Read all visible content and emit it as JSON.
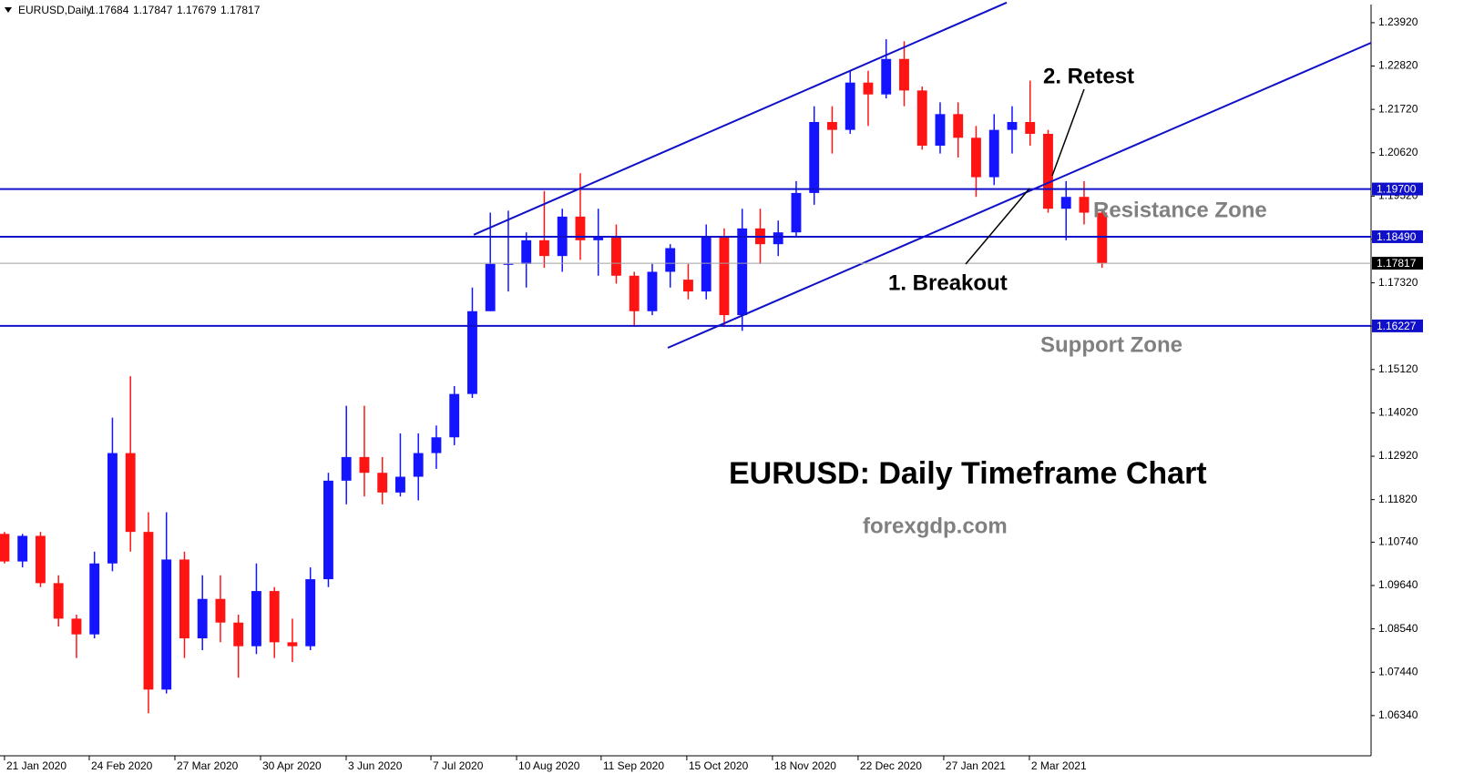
{
  "chart_data": {
    "type": "candlestick",
    "title": "EURUSD,Daily",
    "header_values": [
      1.17684,
      1.17847,
      1.17679,
      1.17817
    ],
    "up_color": "#1414ff",
    "down_color": "#ff1414",
    "line_color": "#1010c8",
    "open": [
      1.1095,
      1.1025,
      1.109,
      1.097,
      1.088,
      1.084,
      1.102,
      1.13,
      1.11,
      1.07,
      1.103,
      1.083,
      1.093,
      1.087,
      1.081,
      1.095,
      1.082,
      1.081,
      1.098,
      1.123,
      1.129,
      1.125,
      1.12,
      1.124,
      1.13,
      1.134,
      1.145,
      1.166,
      1.178,
      1.178,
      1.184,
      1.18,
      1.19,
      1.184,
      1.185,
      1.175,
      1.166,
      1.176,
      1.174,
      1.171,
      1.185,
      1.165,
      1.187,
      1.183,
      1.186,
      1.196,
      1.214,
      1.212,
      1.224,
      1.221,
      1.23,
      1.222,
      1.208,
      1.216,
      1.21,
      1.2,
      1.212,
      1.214,
      1.211,
      1.192,
      1.195,
      1.191
    ],
    "high": [
      1.11,
      1.1095,
      1.11,
      1.099,
      1.089,
      1.105,
      1.139,
      1.1495,
      1.115,
      1.115,
      1.105,
      1.099,
      1.099,
      1.089,
      1.102,
      1.096,
      1.088,
      1.101,
      1.125,
      1.142,
      1.142,
      1.129,
      1.135,
      1.135,
      1.137,
      1.147,
      1.172,
      1.191,
      1.1915,
      1.186,
      1.1965,
      1.192,
      1.201,
      1.192,
      1.188,
      1.176,
      1.178,
      1.183,
      1.178,
      1.188,
      1.187,
      1.192,
      1.192,
      1.189,
      1.199,
      1.218,
      1.218,
      1.227,
      1.227,
      1.235,
      1.2345,
      1.223,
      1.219,
      1.219,
      1.213,
      1.216,
      1.218,
      1.2245,
      1.212,
      1.199,
      1.199,
      1.192
    ],
    "low": [
      1.102,
      1.101,
      1.096,
      1.086,
      1.078,
      1.083,
      1.1,
      1.105,
      1.064,
      1.069,
      1.078,
      1.08,
      1.082,
      1.073,
      1.079,
      1.078,
      1.077,
      1.08,
      1.096,
      1.117,
      1.119,
      1.117,
      1.119,
      1.118,
      1.126,
      1.132,
      1.144,
      1.166,
      1.171,
      1.172,
      1.177,
      1.176,
      1.179,
      1.175,
      1.173,
      1.162,
      1.165,
      1.172,
      1.169,
      1.169,
      1.162,
      1.161,
      1.178,
      1.18,
      1.185,
      1.193,
      1.206,
      1.211,
      1.213,
      1.22,
      1.218,
      1.207,
      1.206,
      1.205,
      1.195,
      1.198,
      1.206,
      1.208,
      1.191,
      1.184,
      1.188,
      1.177
    ],
    "close": [
      1.1025,
      1.109,
      1.097,
      1.088,
      1.084,
      1.102,
      1.13,
      1.11,
      1.07,
      1.103,
      1.083,
      1.093,
      1.087,
      1.081,
      1.095,
      1.082,
      1.081,
      1.098,
      1.123,
      1.129,
      1.125,
      1.12,
      1.124,
      1.13,
      1.134,
      1.145,
      1.166,
      1.178,
      1.178,
      1.184,
      1.18,
      1.19,
      1.184,
      1.185,
      1.175,
      1.166,
      1.176,
      1.182,
      1.171,
      1.185,
      1.165,
      1.187,
      1.183,
      1.186,
      1.196,
      1.214,
      1.212,
      1.224,
      1.221,
      1.23,
      1.222,
      1.208,
      1.216,
      1.21,
      1.2,
      1.212,
      1.214,
      1.211,
      1.192,
      1.195,
      1.191,
      1.1782
    ],
    "xlim": [
      -0.25,
      75.95
    ],
    "ylim": [
      1.0532,
      1.2438
    ],
    "xticks": [
      {
        "value": 0,
        "label": "21 Jan 2020"
      },
      {
        "value": 4.71,
        "label": "24 Feb 2020"
      },
      {
        "value": 9.47,
        "label": "27 Mar 2020"
      },
      {
        "value": 14.23,
        "label": "30 Apr 2020"
      },
      {
        "value": 18.99,
        "label": "3 Jun 2020"
      },
      {
        "value": 23.7,
        "label": "7 Jul 2020"
      },
      {
        "value": 28.46,
        "label": "10 Aug 2020"
      },
      {
        "value": 33.16,
        "label": "11 Sep 2020"
      },
      {
        "value": 37.92,
        "label": "15 Oct 2020"
      },
      {
        "value": 42.68,
        "label": "18 Nov 2020"
      },
      {
        "value": 47.44,
        "label": "22 Dec 2020"
      },
      {
        "value": 52.2,
        "label": "27 Jan 2021"
      },
      {
        "value": 56.96,
        "label": "2 Mar 2021"
      }
    ],
    "yticks": [
      {
        "value": 1.0634,
        "label": "1.06340"
      },
      {
        "value": 1.0744,
        "label": "1.07440"
      },
      {
        "value": 1.0854,
        "label": "1.08540"
      },
      {
        "value": 1.0964,
        "label": "1.09640"
      },
      {
        "value": 1.1074,
        "label": "1.10740"
      },
      {
        "value": 1.1182,
        "label": "1.11820"
      },
      {
        "value": 1.1292,
        "label": "1.12920"
      },
      {
        "value": 1.1402,
        "label": "1.14020"
      },
      {
        "value": 1.1512,
        "label": "1.15120"
      },
      {
        "value": 1.1622,
        "label": "1.16220"
      },
      {
        "value": 1.1732,
        "label": "1.17320"
      },
      {
        "value": 1.1842,
        "label": "1.18420"
      },
      {
        "value": 1.1952,
        "label": "1.19520"
      },
      {
        "value": 1.2062,
        "label": "1.20620"
      },
      {
        "value": 1.2172,
        "label": "1.21720"
      },
      {
        "value": 1.2282,
        "label": "1.22820"
      },
      {
        "value": 1.2392,
        "label": "1.23920"
      }
    ],
    "levels": [
      {
        "value": 1.197,
        "label": "1.19700"
      },
      {
        "value": 1.1849,
        "label": "1.18490"
      },
      {
        "value": 1.16227,
        "label": "1.16227"
      }
    ],
    "current_price": {
      "value": 1.17817,
      "label": "1.17817"
    },
    "trend_lines": [
      {
        "x": [
          26.08,
          55.7
        ],
        "y": [
          1.1854,
          1.2443
        ]
      },
      {
        "x": [
          36.86,
          75.95
        ],
        "y": [
          1.1567,
          1.2341
        ]
      }
    ],
    "annotations": {
      "retest": "2. Retest",
      "breakout": "1. Breakout",
      "resistance": "Resistance Zone",
      "support": "Support Zone",
      "heading": "EURUSD: Daily Timeframe Chart",
      "site": "forexgdp.com"
    }
  }
}
